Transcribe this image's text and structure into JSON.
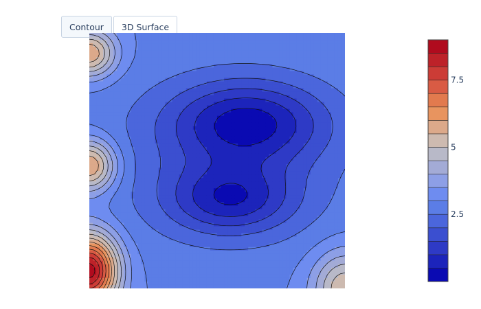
{
  "buttons": [
    {
      "label": "Contour"
    },
    {
      "label": "3D Surface"
    }
  ],
  "chart_data": {
    "type": "contour",
    "title": "",
    "xlabel": "",
    "ylabel": "",
    "colorscale_name": "coolwarm",
    "zlim": [
      0,
      9
    ],
    "contour_step": 0.5,
    "colorbar": {
      "ticks": [
        2.5,
        5,
        7.5
      ],
      "tick_labels": [
        "2.5",
        "5",
        "7.5"
      ]
    },
    "colorscale": [
      {
        "value": 0.0,
        "color": "#0a0ab2"
      },
      {
        "value": 0.5,
        "color": "#1c24bb"
      },
      {
        "value": 1.0,
        "color": "#2e3ac6"
      },
      {
        "value": 1.5,
        "color": "#3b4fd0"
      },
      {
        "value": 2.0,
        "color": "#4b66dc"
      },
      {
        "value": 2.5,
        "color": "#5b7de6"
      },
      {
        "value": 3.0,
        "color": "#6e8cf0"
      },
      {
        "value": 3.5,
        "color": "#8d9fe6"
      },
      {
        "value": 4.0,
        "color": "#a3abd6"
      },
      {
        "value": 4.5,
        "color": "#b8b9c8"
      },
      {
        "value": 5.0,
        "color": "#cdbab0"
      },
      {
        "value": 5.5,
        "color": "#dca98a"
      },
      {
        "value": 6.0,
        "color": "#e8945f"
      },
      {
        "value": 6.5,
        "color": "#e27a4e"
      },
      {
        "value": 7.0,
        "color": "#d95b44"
      },
      {
        "value": 7.5,
        "color": "#cc3c36"
      },
      {
        "value": 8.0,
        "color": "#bd2229"
      },
      {
        "value": 8.5,
        "color": "#b00b1e"
      }
    ],
    "grid": false
  }
}
